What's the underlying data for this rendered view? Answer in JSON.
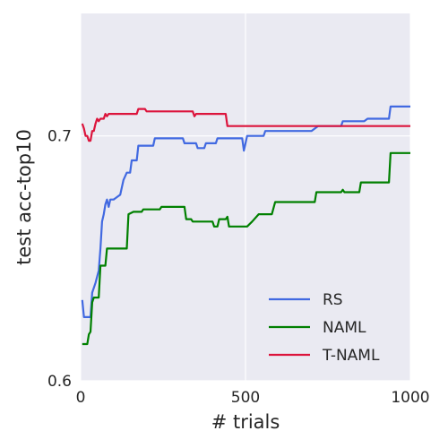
{
  "chart_data": {
    "type": "line",
    "xlabel": "# trials",
    "ylabel": "test acc-top10",
    "xlim": [
      0,
      1000
    ],
    "ylim": [
      0.6,
      0.75
    ],
    "xticks": [
      0,
      500,
      1000
    ],
    "yticks": [
      0.6,
      0.7
    ],
    "xtick_labels": [
      "0",
      "500",
      "1000"
    ],
    "ytick_labels": [
      "0.6",
      "0.7"
    ],
    "grid": true,
    "legend_position": "lower-right",
    "series": [
      {
        "name": "RS",
        "color": "#4169e1",
        "points": [
          [
            5,
            0.633
          ],
          [
            10,
            0.626
          ],
          [
            30,
            0.626
          ],
          [
            35,
            0.636
          ],
          [
            45,
            0.64
          ],
          [
            55,
            0.645
          ],
          [
            60,
            0.654
          ],
          [
            65,
            0.665
          ],
          [
            70,
            0.668
          ],
          [
            75,
            0.672
          ],
          [
            80,
            0.674
          ],
          [
            85,
            0.671
          ],
          [
            90,
            0.674
          ],
          [
            100,
            0.674
          ],
          [
            110,
            0.675
          ],
          [
            120,
            0.676
          ],
          [
            130,
            0.682
          ],
          [
            140,
            0.685
          ],
          [
            150,
            0.685
          ],
          [
            155,
            0.69
          ],
          [
            170,
            0.69
          ],
          [
            175,
            0.696
          ],
          [
            220,
            0.696
          ],
          [
            225,
            0.699
          ],
          [
            310,
            0.699
          ],
          [
            315,
            0.697
          ],
          [
            350,
            0.697
          ],
          [
            355,
            0.695
          ],
          [
            375,
            0.695
          ],
          [
            380,
            0.697
          ],
          [
            410,
            0.697
          ],
          [
            415,
            0.699
          ],
          [
            490,
            0.699
          ],
          [
            495,
            0.694
          ],
          [
            500,
            0.697
          ],
          [
            505,
            0.7
          ],
          [
            555,
            0.7
          ],
          [
            560,
            0.702
          ],
          [
            700,
            0.702
          ],
          [
            720,
            0.704
          ],
          [
            790,
            0.704
          ],
          [
            795,
            0.706
          ],
          [
            860,
            0.706
          ],
          [
            870,
            0.707
          ],
          [
            935,
            0.707
          ],
          [
            940,
            0.712
          ],
          [
            1000,
            0.712
          ]
        ]
      },
      {
        "name": "NAML",
        "color": "#008000",
        "points": [
          [
            5,
            0.615
          ],
          [
            20,
            0.615
          ],
          [
            25,
            0.619
          ],
          [
            30,
            0.62
          ],
          [
            35,
            0.632
          ],
          [
            40,
            0.634
          ],
          [
            55,
            0.634
          ],
          [
            60,
            0.647
          ],
          [
            75,
            0.647
          ],
          [
            80,
            0.654
          ],
          [
            140,
            0.654
          ],
          [
            145,
            0.668
          ],
          [
            160,
            0.669
          ],
          [
            185,
            0.669
          ],
          [
            190,
            0.67
          ],
          [
            240,
            0.67
          ],
          [
            245,
            0.671
          ],
          [
            315,
            0.671
          ],
          [
            320,
            0.666
          ],
          [
            335,
            0.666
          ],
          [
            340,
            0.665
          ],
          [
            400,
            0.665
          ],
          [
            405,
            0.663
          ],
          [
            415,
            0.663
          ],
          [
            420,
            0.666
          ],
          [
            440,
            0.666
          ],
          [
            445,
            0.667
          ],
          [
            450,
            0.663
          ],
          [
            505,
            0.663
          ],
          [
            520,
            0.665
          ],
          [
            540,
            0.668
          ],
          [
            580,
            0.668
          ],
          [
            590,
            0.673
          ],
          [
            710,
            0.673
          ],
          [
            715,
            0.677
          ],
          [
            790,
            0.677
          ],
          [
            795,
            0.678
          ],
          [
            800,
            0.677
          ],
          [
            845,
            0.677
          ],
          [
            850,
            0.681
          ],
          [
            935,
            0.681
          ],
          [
            940,
            0.693
          ],
          [
            1000,
            0.693
          ]
        ]
      },
      {
        "name": "T-NAML",
        "color": "#dc143c",
        "points": [
          [
            5,
            0.705
          ],
          [
            10,
            0.703
          ],
          [
            15,
            0.7
          ],
          [
            20,
            0.7
          ],
          [
            25,
            0.698
          ],
          [
            30,
            0.698
          ],
          [
            35,
            0.702
          ],
          [
            40,
            0.702
          ],
          [
            45,
            0.705
          ],
          [
            50,
            0.707
          ],
          [
            55,
            0.706
          ],
          [
            60,
            0.707
          ],
          [
            70,
            0.707
          ],
          [
            75,
            0.709
          ],
          [
            80,
            0.708
          ],
          [
            85,
            0.709
          ],
          [
            170,
            0.709
          ],
          [
            175,
            0.711
          ],
          [
            195,
            0.711
          ],
          [
            200,
            0.71
          ],
          [
            340,
            0.71
          ],
          [
            345,
            0.708
          ],
          [
            350,
            0.709
          ],
          [
            440,
            0.709
          ],
          [
            445,
            0.704
          ],
          [
            1000,
            0.704
          ]
        ]
      }
    ]
  }
}
